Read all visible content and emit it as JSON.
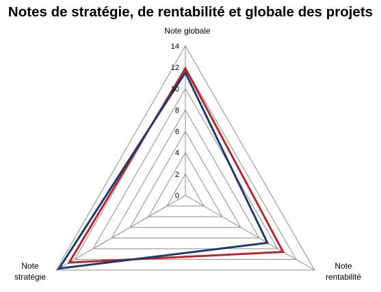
{
  "chart_data": {
    "type": "radar",
    "title": "Notes de stratégie, de rentabilité et globale des projets",
    "axes": [
      "Note globale",
      "Note\nrentabilité",
      "Note\nstratégie"
    ],
    "rmin": 0,
    "rmax": 14,
    "ticks": [
      0,
      2,
      4,
      6,
      8,
      10,
      12,
      14
    ],
    "tick_labels": [
      "0",
      "2",
      "4",
      "6",
      "8",
      "10",
      "12",
      "14"
    ],
    "grid": true,
    "legend": "none",
    "series": [
      {
        "values": [
          11.9,
          10.6,
          12.6
        ],
        "color": "#b5272d"
      },
      {
        "values": [
          11.5,
          8.9,
          13.7
        ],
        "color": "#1f3a6e"
      }
    ]
  }
}
